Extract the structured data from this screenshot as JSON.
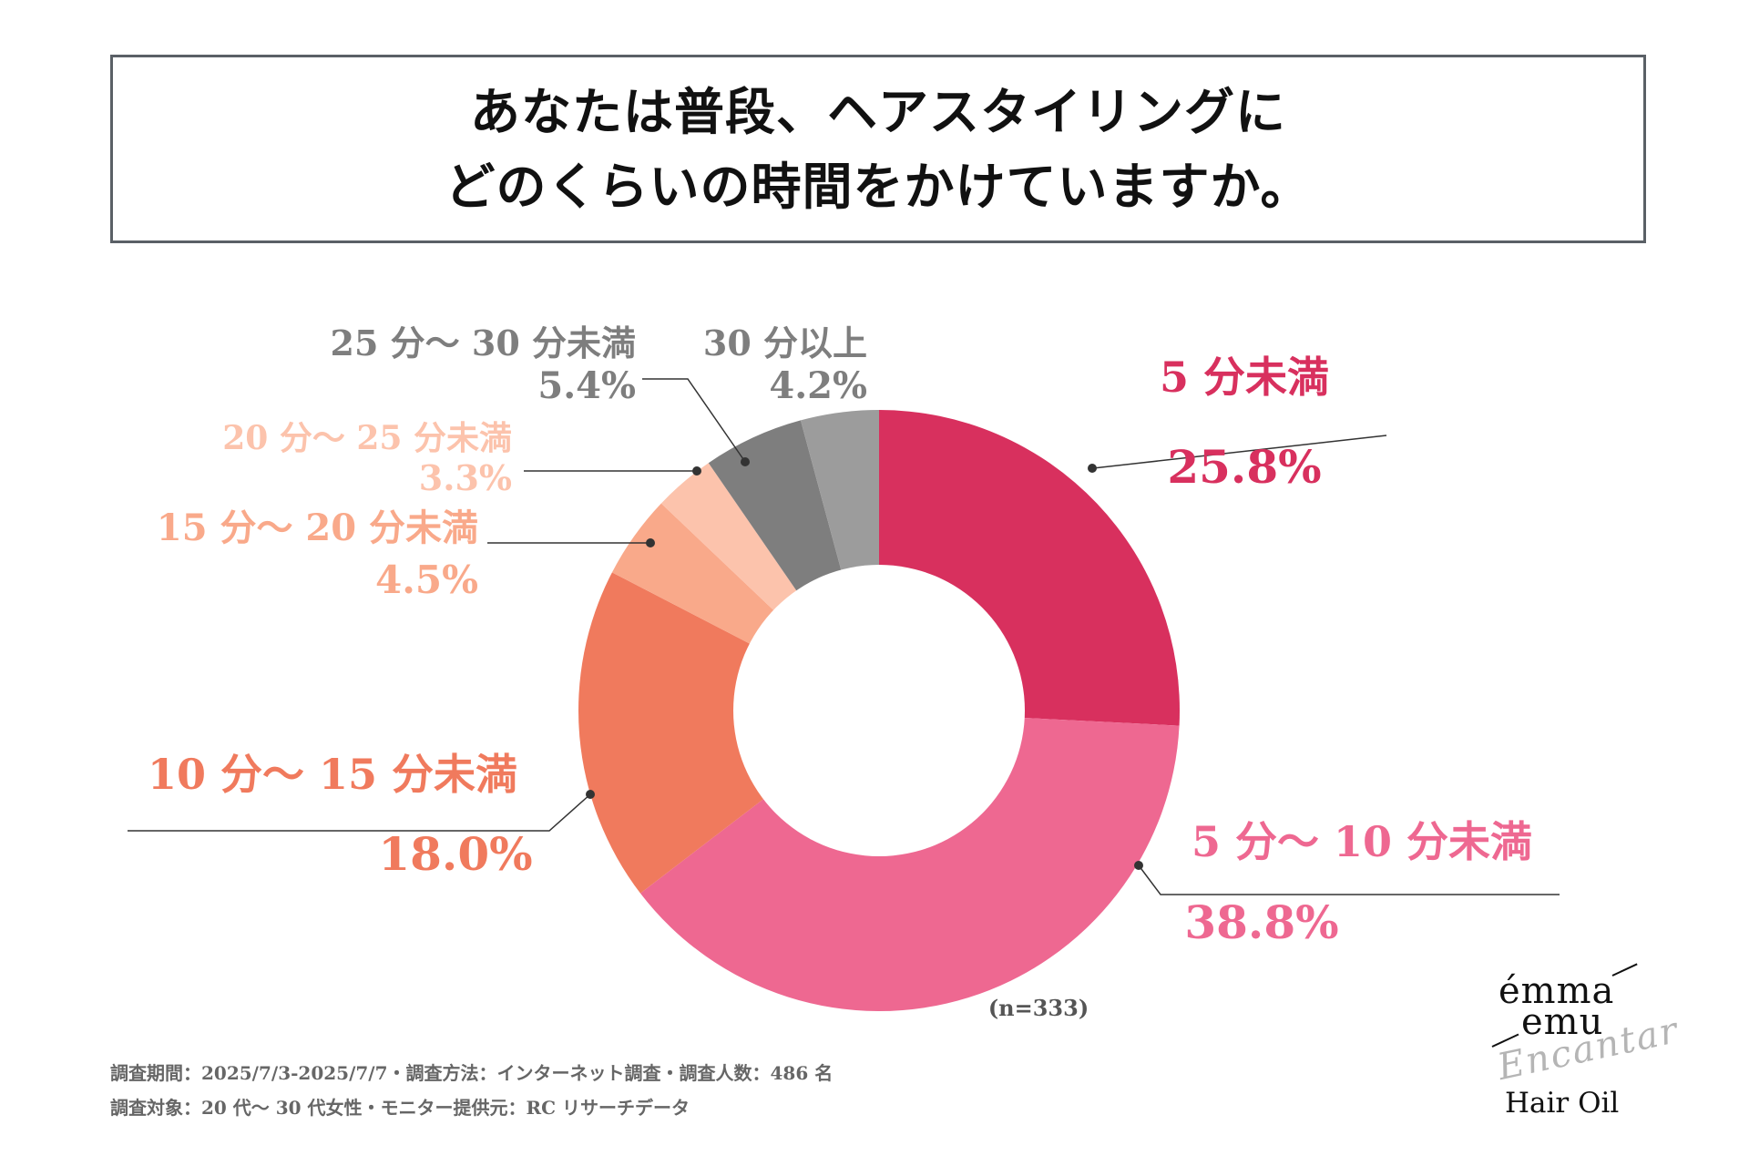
{
  "title": {
    "line1": "あなたは普段、ヘアスタイリングに",
    "line2": "どのくらいの時間をかけていますか。"
  },
  "chart_data": {
    "type": "pie",
    "donut": true,
    "categories": [
      "5分未満",
      "5分〜10分未満",
      "10分〜15分未満",
      "15分〜20分未満",
      "20分〜25分未満",
      "25分〜30分未満",
      "30分以上"
    ],
    "category_labels": [
      "5 分未満",
      "5 分〜 10 分未満",
      "10 分〜 15 分未満",
      "15 分〜 20 分未満",
      "20 分〜 25 分未満",
      "25 分〜 30 分未満",
      "30 分以上"
    ],
    "values": [
      25.8,
      38.8,
      18.0,
      4.5,
      3.3,
      5.4,
      4.2
    ],
    "value_labels": [
      "25.8%",
      "38.8%",
      "18.0%",
      "4.5%",
      "3.3%",
      "5.4%",
      "4.2%"
    ],
    "colors": [
      "#d8305e",
      "#ee6891",
      "#f07a5d",
      "#f9a98a",
      "#fcc3ac",
      "#7e7e7e",
      "#9c9c9c"
    ],
    "label_colors": [
      "#d8305e",
      "#ee6891",
      "#f07a5d",
      "#f9a98a",
      "#fcc3ac",
      "#7e7e7e",
      "#7e7e7e"
    ],
    "start": "12 o'clock",
    "direction": "clockwise"
  },
  "sample_size": "(n=333)",
  "footnotes": {
    "line1": "調査期間：2025/7/3-2025/7/7・調査方法：インターネット調査・調査人数：486 名",
    "line2": "調査対象：20 代〜 30 代女性・モニター提供元：RC リサーチデータ"
  },
  "logo": {
    "line1": "émma",
    "line2": "emu",
    "script": "Encantar",
    "product": "Hair Oil"
  }
}
